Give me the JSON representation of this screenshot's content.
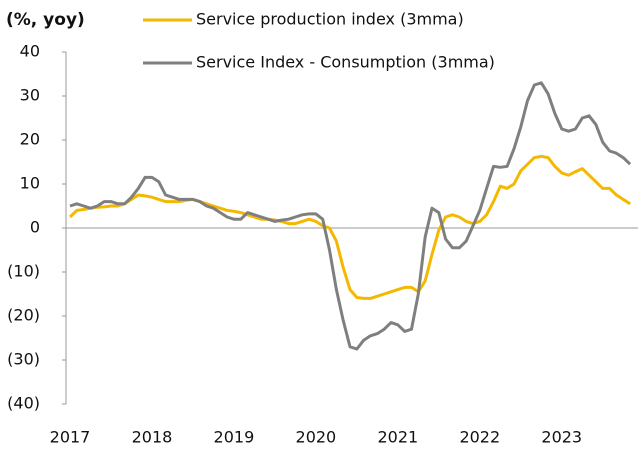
{
  "chart_data": {
    "type": "line",
    "y_label": "(%, yoy)",
    "categories": [
      "2017",
      null,
      null,
      null,
      null,
      null,
      null,
      null,
      null,
      null,
      null,
      null,
      "2018",
      null,
      null,
      null,
      null,
      null,
      null,
      null,
      null,
      null,
      null,
      null,
      "2019",
      null,
      null,
      null,
      null,
      null,
      null,
      null,
      null,
      null,
      null,
      null,
      "2020",
      null,
      null,
      null,
      null,
      null,
      null,
      null,
      null,
      null,
      null,
      null,
      "2021",
      null,
      null,
      null,
      null,
      null,
      null,
      null,
      null,
      null,
      null,
      null,
      "2022",
      null,
      null,
      null,
      null,
      null,
      null,
      null,
      null,
      null,
      null,
      null,
      "2023",
      null,
      null,
      null,
      null,
      null,
      null,
      null,
      null,
      null,
      null
    ],
    "series": [
      {
        "name": "Service production index (3mma)",
        "color": "#f5b800",
        "values": [
          2.5,
          4,
          4.2,
          4.5,
          4.7,
          4.8,
          5,
          5,
          5.5,
          6.5,
          7.5,
          7.3,
          7,
          6.5,
          6,
          6,
          6,
          6.3,
          6.5,
          6,
          5.5,
          5,
          4.5,
          4,
          3.8,
          3.5,
          3,
          2.5,
          2,
          2,
          1.8,
          1.5,
          1,
          1,
          1.5,
          2,
          1.5,
          0.5,
          0,
          -3,
          -9,
          -14,
          -15.8,
          -16,
          -16,
          -15.5,
          -15,
          -14.5,
          -14,
          -13.5,
          -13.5,
          -14.5,
          -12,
          -6,
          -0.5,
          2.5,
          3,
          2.5,
          1.5,
          1,
          1.5,
          3,
          6,
          9.5,
          9,
          10,
          13,
          14.5,
          16,
          16.3,
          16,
          14,
          12.5,
          12,
          12.8,
          13.5,
          12,
          10.5,
          9,
          9,
          7.5,
          6.5,
          5.5
        ]
      },
      {
        "name": "Service Index - Consumption (3mma)",
        "color": "#7f7f7f",
        "values": [
          5,
          5.5,
          5,
          4.5,
          5,
          6,
          6,
          5.5,
          5.5,
          7,
          9,
          11.5,
          11.5,
          10.5,
          7.5,
          7,
          6.5,
          6.5,
          6.5,
          6,
          5,
          4.5,
          3.5,
          2.5,
          2,
          2,
          3.5,
          3,
          2.5,
          2,
          1.5,
          1.8,
          2,
          2.5,
          3,
          3.2,
          3.2,
          2,
          -5,
          -14,
          -21,
          -27,
          -27.5,
          -25.5,
          -24.5,
          -24,
          -23,
          -21.5,
          -22,
          -23.5,
          -23,
          -15,
          -2,
          4.5,
          3.5,
          -2.5,
          -4.5,
          -4.5,
          -3,
          0.5,
          4,
          9,
          14,
          13.8,
          14,
          18,
          23,
          29,
          32.5,
          33,
          30.5,
          26,
          22.5,
          22,
          22.5,
          25,
          25.5,
          23.5,
          19.5,
          17.5,
          17,
          16,
          14.5
        ]
      }
    ],
    "ylim": [
      -40,
      40
    ],
    "yticks": [
      {
        "value": -40,
        "label": "(40)"
      },
      {
        "value": -30,
        "label": "(30)"
      },
      {
        "value": -20,
        "label": "(20)"
      },
      {
        "value": -10,
        "label": "(10)"
      },
      0,
      10,
      20,
      30,
      40
    ]
  }
}
